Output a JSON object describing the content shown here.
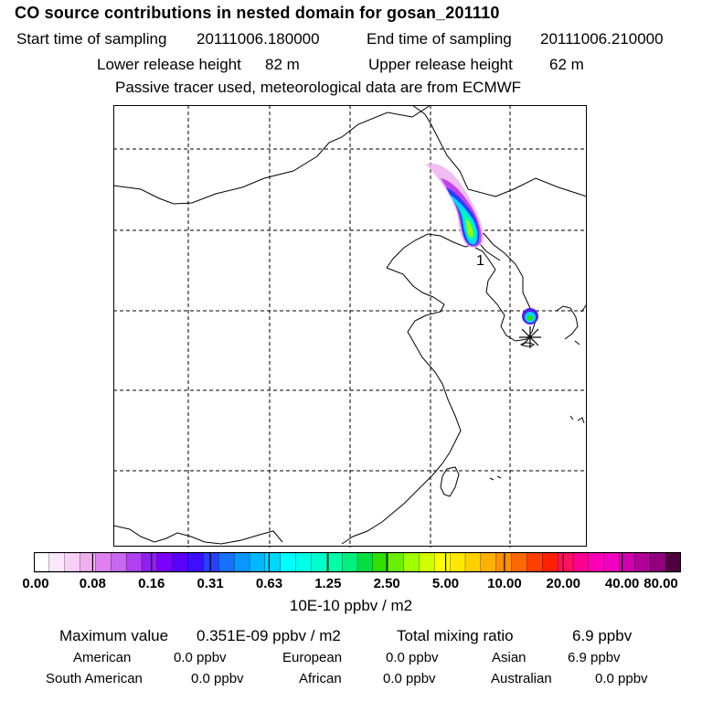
{
  "header": {
    "title": "CO  source contributions in nested domain for gosan_201110",
    "start_label": "Start time of sampling",
    "start_value": "20111006.180000",
    "end_label": "End time of sampling",
    "end_value": "20111006.210000",
    "lower_label": "Lower release height",
    "lower_value": "82 m",
    "upper_label": "Upper release height",
    "upper_value": "62 m",
    "tracer_note": "Passive tracer used, meteorological data are from ECMWF"
  },
  "map": {
    "release_label": "1",
    "receptor_marker": "station-star-icon"
  },
  "colorbar": {
    "ticks": [
      "0.00",
      "0.08",
      "0.16",
      "0.31",
      "0.63",
      "1.25",
      "2.50",
      "5.00",
      "10.00",
      "20.00",
      "40.00",
      "80.00"
    ],
    "unit": "10E-10 ppbv / m2",
    "colors": [
      "#ffffff",
      "#fce8fc",
      "#f8d0f8",
      "#f0b0f0",
      "#e080f0",
      "#c868f0",
      "#b040f0",
      "#9020f0",
      "#7a00ff",
      "#5a00ff",
      "#3a10ff",
      "#2840ff",
      "#1870ff",
      "#0898ff",
      "#00b8ff",
      "#00d8ff",
      "#00ffff",
      "#00ffe8",
      "#00ffcc",
      "#00ffa8",
      "#00f080",
      "#00e040",
      "#30e000",
      "#68f000",
      "#a0ff00",
      "#d0ff00",
      "#ffff00",
      "#ffe800",
      "#ffd000",
      "#ffb000",
      "#ff9000",
      "#ff6800",
      "#ff4000",
      "#ff2000",
      "#ff1060",
      "#ff0090",
      "#ff00b8",
      "#f000c0",
      "#d000b0",
      "#b00098",
      "#900080",
      "#500040"
    ]
  },
  "stats": {
    "max_label": "Maximum value",
    "max_value": "0.351E-09 ppbv / m2",
    "total_label": "Total mixing ratio",
    "total_value": "6.9 ppbv",
    "regions_row1": [
      {
        "name": "American",
        "value": "0.0 ppbv"
      },
      {
        "name": "European",
        "value": "0.0 ppbv"
      },
      {
        "name": "Asian",
        "value": "6.9 ppbv"
      }
    ],
    "regions_row2": [
      {
        "name": "South American",
        "value": "0.0 ppbv"
      },
      {
        "name": "African",
        "value": "0.0 ppbv"
      },
      {
        "name": "Australian",
        "value": "0.0 ppbv"
      }
    ]
  }
}
